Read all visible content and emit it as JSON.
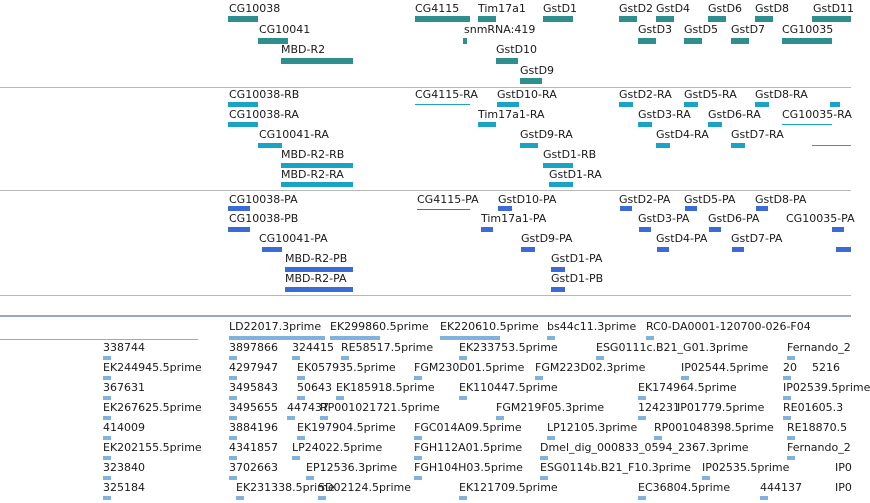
{
  "gene_track": {
    "labels": [
      "CG10038",
      "CG10041",
      "MBD-R2",
      "CG4115",
      "snmRNA:419",
      "Tim17a1",
      "GstD1",
      "GstD10",
      "GstD9",
      "GstD2",
      "GstD3",
      "GstD4",
      "GstD5",
      "GstD6",
      "GstD7",
      "GstD8",
      "CG10035",
      "GstD11"
    ]
  },
  "transcript_track": {
    "labels": [
      "CG10038-RB",
      "CG10038-RA",
      "CG10041-RA",
      "MBD-R2-RB",
      "MBD-R2-RA",
      "CG4115-RA",
      "GstD10-RA",
      "Tim17a1-RA",
      "GstD9-RA",
      "GstD1-RB",
      "GstD1-RA",
      "GstD2-RA",
      "GstD3-RA",
      "GstD4-RA",
      "GstD5-RA",
      "GstD6-RA",
      "GstD7-RA",
      "GstD8-RA",
      "CG10035-RA"
    ]
  },
  "protein_track": {
    "labels": [
      "CG10038-PA",
      "CG10038-PB",
      "CG10041-PA",
      "MBD-R2-PB",
      "MBD-R2-PA",
      "CG4115-PA",
      "GstD10-PA",
      "Tim17a1-PA",
      "GstD9-PA",
      "GstD1-PA",
      "GstD1-PB",
      "GstD2-PA",
      "GstD3-PA",
      "GstD4-PA",
      "GstD5-PA",
      "GstD6-PA",
      "GstD7-PA",
      "GstD8-PA",
      "CG10035-PA"
    ]
  },
  "est_track": {
    "labels": [
      "LD22017.3prime",
      "EK299860.5prime",
      "EK220610.5prime",
      "bs44c11.3prime",
      "RC0-DA0001-120700-026-F04",
      "338744",
      "3897866",
      "324415",
      "RE58517.5prime",
      "EK233753.5prime",
      "ESG0111c.B21_G01.3prime",
      "Fernando_2",
      "EK244945.5prime",
      "4297947",
      "EK057935.5prime",
      "FGM230D01.5prime",
      "FGM223D02.3prime",
      "IP02544.5prime",
      "20",
      "5216",
      "367631",
      "3495843",
      "50643",
      "EK185918.5prime",
      "EK110447.5prime",
      "EK174964.5prime",
      "IP02539.5prime",
      "EK267625.5prime",
      "3495655",
      "447437",
      "RP001021721.5prime",
      "FGM219F05.3prime",
      "124231",
      "IP01779.5prime",
      "RE01605.3",
      "414009",
      "3884196",
      "EK197904.5prime",
      "FGC014A09.5prime",
      "LP12105.3prime",
      "RP001048398.5prime",
      "RE18870.5",
      "EK202155.5prime",
      "4341857",
      "LP24022.5prime",
      "FGH112A01.5prime",
      "Dmel_dig_000833_0594_2367.3prime",
      "Fernando_2",
      "323840",
      "3702663",
      "EP12536.3prime",
      "FGH104H03.5prime",
      "ESG0114b.B21_F10.3prime",
      "IP02535.5prime",
      "IP0",
      "325184",
      "EK231338.5prime",
      "SD02124.5prime",
      "EK121709.5prime",
      "EC36804.5prime",
      "444137",
      "IP0"
    ]
  }
}
